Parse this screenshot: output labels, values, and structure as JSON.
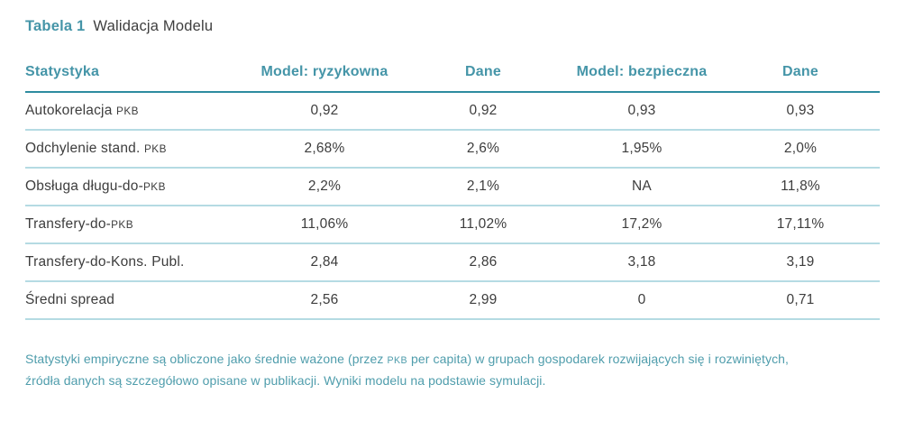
{
  "caption": {
    "label": "Tabela 1",
    "title": "Walidacja Modelu"
  },
  "chart_data": {
    "type": "table",
    "title": "Tabela 1 — Walidacja Modelu",
    "columns": [
      "Statystyka",
      "Model: ryzykowna",
      "Dane",
      "Model: bezpieczna",
      "Dane"
    ],
    "rows": [
      [
        "Autokorelacja PKB",
        "0,92",
        "0,92",
        "0,93",
        "0,93"
      ],
      [
        "Odchylenie stand. PKB",
        "2,68%",
        "2,6%",
        "1,95%",
        "2,0%"
      ],
      [
        "Obsługa długu-do-PKB",
        "2,2%",
        "2,1%",
        "NA",
        "11,8%"
      ],
      [
        "Transfery-do-PKB",
        "11,06%",
        "11,02%",
        "17,2%",
        "17,11%"
      ],
      [
        "Transfery-do-Kons. Publ.",
        "2,84",
        "2,86",
        "3,18",
        "3,19"
      ],
      [
        "Średni spread",
        "2,56",
        "2,99",
        "0",
        "0,71"
      ]
    ]
  },
  "footnote": {
    "lines": [
      "Statystyki empiryczne są obliczone jako średnie ważone (przez PKB per capita) w grupach gospodarek rozwijających się i rozwiniętych,",
      "źródła danych są szczegółowo opisane w publikacji. Wyniki modelu na podstawie symulacji."
    ]
  },
  "colors": {
    "accent_teal": "#4595a8",
    "footnote_teal": "#4f9dac",
    "header_rule": "#2e8ca0",
    "row_rule": "#b5dbe3",
    "body_text": "#3d3d3d"
  }
}
